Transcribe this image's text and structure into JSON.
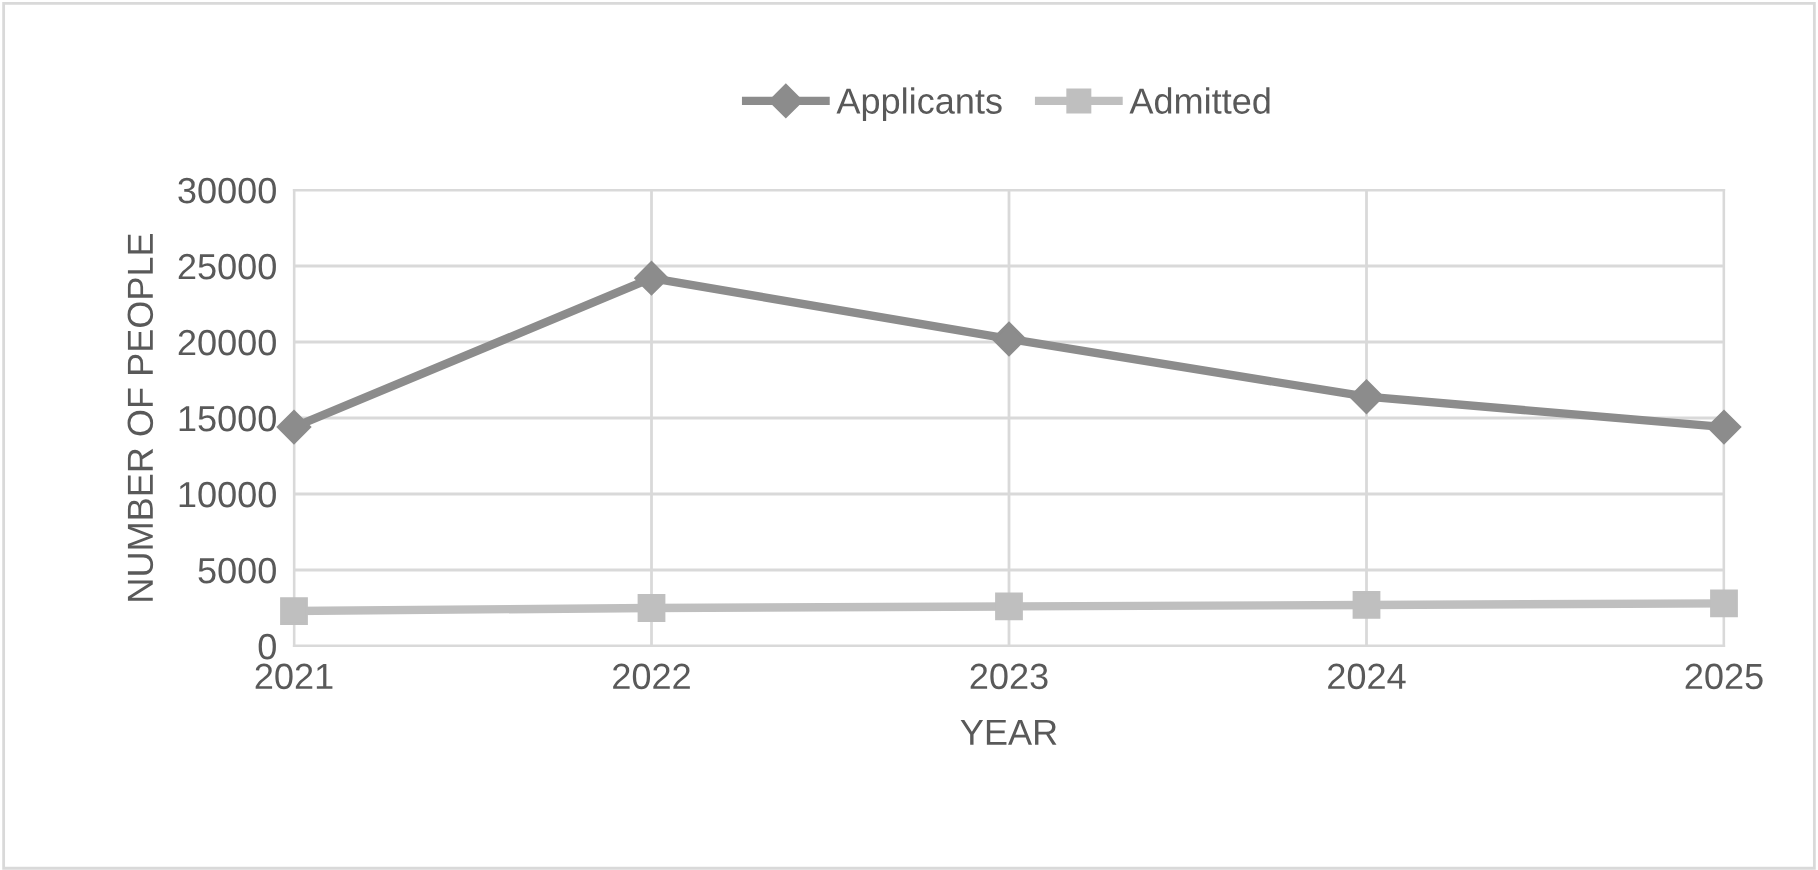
{
  "chart_data": {
    "type": "line",
    "xlabel": "YEAR",
    "ylabel": "NUMBER OF PEOPLE",
    "categories": [
      "2021",
      "2022",
      "2023",
      "2024",
      "2025"
    ],
    "series": [
      {
        "name": "Applicants",
        "color": "#8c8c8c",
        "marker": "diamond",
        "values": [
          14400,
          24200,
          20200,
          16400,
          14400
        ]
      },
      {
        "name": "Admitted",
        "color": "#bfbfbf",
        "marker": "square",
        "values": [
          2300,
          2500,
          2600,
          2700,
          2800
        ]
      }
    ],
    "ylim": [
      0,
      30000
    ],
    "yticks": [
      0,
      5000,
      10000,
      15000,
      20000,
      25000,
      30000
    ],
    "grid": true,
    "legend": "top",
    "line_style": "solid"
  }
}
